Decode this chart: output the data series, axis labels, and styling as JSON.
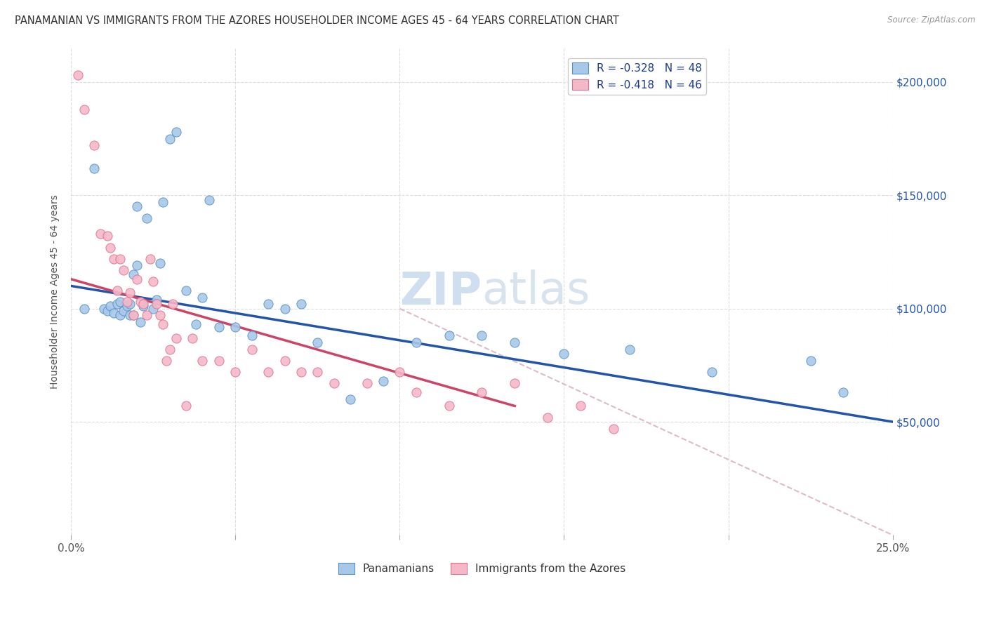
{
  "title": "PANAMANIAN VS IMMIGRANTS FROM THE AZORES HOUSEHOLDER INCOME AGES 45 - 64 YEARS CORRELATION CHART",
  "source": "Source: ZipAtlas.com",
  "xlabel_vals": [
    0.0,
    5.0,
    10.0,
    15.0,
    20.0,
    25.0
  ],
  "xlabel_labels_show": [
    "0.0%",
    "",
    "",
    "",
    "",
    "25.0%"
  ],
  "ylabel": "Householder Income Ages 45 - 64 years",
  "ylabel_vals": [
    0,
    50000,
    100000,
    150000,
    200000
  ],
  "right_ytick_labels": [
    "$50,000",
    "$100,000",
    "$150,000",
    "$200,000"
  ],
  "right_ytick_vals": [
    50000,
    100000,
    150000,
    200000
  ],
  "xlim": [
    0.0,
    25.0
  ],
  "ylim": [
    0,
    215000
  ],
  "legend_R_blue": "-0.328",
  "legend_N_blue": "48",
  "legend_R_pink": "-0.418",
  "legend_N_pink": "46",
  "blue_color": "#a8c8e8",
  "pink_color": "#f4b8c8",
  "blue_edge_color": "#5590c8",
  "pink_edge_color": "#e07090",
  "blue_line_color": "#2255aa",
  "pink_line_color": "#cc4466",
  "diagonal_color": "#ddbbcc",
  "watermark_color": "#d0dff0",
  "background_color": "#ffffff",
  "grid_color": "#dddddd",
  "title_color": "#333333",
  "axis_label_color": "#555555",
  "legend_label_color": "#1a3a8a",
  "bottom_legend_blue": "Panamanians",
  "bottom_legend_pink": "Immigrants from the Azores",
  "blue_scatter_x": [
    0.4,
    0.7,
    1.0,
    1.1,
    1.2,
    1.3,
    1.4,
    1.5,
    1.5,
    1.6,
    1.7,
    1.8,
    1.8,
    1.9,
    1.9,
    2.0,
    2.0,
    2.1,
    2.2,
    2.3,
    2.5,
    2.6,
    2.7,
    2.8,
    3.0,
    3.2,
    3.5,
    4.0,
    4.5,
    5.0,
    5.5,
    6.5,
    7.5,
    8.5,
    9.5,
    10.5,
    11.5,
    12.5,
    13.5,
    15.0,
    17.0,
    19.5,
    22.5,
    23.5,
    3.8,
    4.2,
    6.0,
    7.0
  ],
  "blue_scatter_y": [
    100000,
    162000,
    100000,
    99000,
    101000,
    98000,
    102000,
    97000,
    103000,
    99000,
    101000,
    97000,
    102000,
    115000,
    97000,
    119000,
    145000,
    94000,
    101000,
    140000,
    100000,
    104000,
    120000,
    147000,
    175000,
    178000,
    108000,
    105000,
    92000,
    92000,
    88000,
    100000,
    85000,
    60000,
    68000,
    85000,
    88000,
    88000,
    85000,
    80000,
    82000,
    72000,
    77000,
    63000,
    93000,
    148000,
    102000,
    102000
  ],
  "pink_scatter_x": [
    0.2,
    0.4,
    0.7,
    0.9,
    1.1,
    1.2,
    1.3,
    1.4,
    1.5,
    1.6,
    1.7,
    1.8,
    1.9,
    2.0,
    2.1,
    2.2,
    2.3,
    2.4,
    2.5,
    2.6,
    2.7,
    2.8,
    2.9,
    3.0,
    3.1,
    3.2,
    3.5,
    3.7,
    4.0,
    4.5,
    5.0,
    5.5,
    6.0,
    6.5,
    7.0,
    7.5,
    8.0,
    9.0,
    10.0,
    10.5,
    11.5,
    12.5,
    13.5,
    14.5,
    15.5,
    16.5
  ],
  "pink_scatter_y": [
    203000,
    188000,
    172000,
    133000,
    132000,
    127000,
    122000,
    108000,
    122000,
    117000,
    103000,
    107000,
    97000,
    113000,
    103000,
    102000,
    97000,
    122000,
    112000,
    102000,
    97000,
    93000,
    77000,
    82000,
    102000,
    87000,
    57000,
    87000,
    77000,
    77000,
    72000,
    82000,
    72000,
    77000,
    72000,
    72000,
    67000,
    67000,
    72000,
    63000,
    57000,
    63000,
    67000,
    52000,
    57000,
    47000
  ],
  "blue_trend_x": [
    0.0,
    25.0
  ],
  "blue_trend_y": [
    110000,
    50000
  ],
  "pink_trend_x": [
    0.0,
    13.5
  ],
  "pink_trend_y": [
    113000,
    57000
  ],
  "diag_trend_x": [
    10.0,
    25.0
  ],
  "diag_trend_y": [
    100000,
    0
  ]
}
